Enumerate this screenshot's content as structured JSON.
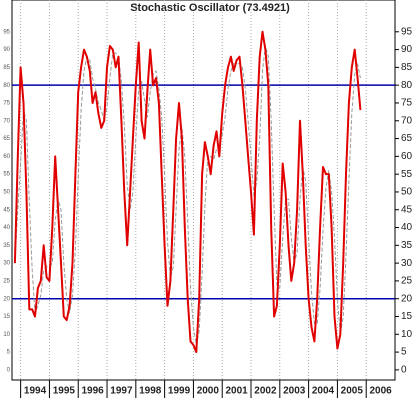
{
  "chart_data": {
    "type": "line",
    "title": "Stochastic Oscillator (73.4921)",
    "x": [
      1993.8,
      1993.9,
      1994,
      1994.1,
      1994.2,
      1994.3,
      1994.4,
      1994.5,
      1994.6,
      1994.7,
      1994.8,
      1994.9,
      1995,
      1995.1,
      1995.2,
      1995.3,
      1995.4,
      1995.5,
      1995.6,
      1995.7,
      1995.8,
      1995.9,
      1996,
      1996.1,
      1996.2,
      1996.3,
      1996.4,
      1996.5,
      1996.6,
      1996.7,
      1996.8,
      1996.9,
      1997,
      1997.1,
      1997.2,
      1997.3,
      1997.4,
      1997.5,
      1997.6,
      1997.7,
      1997.8,
      1997.9,
      1998,
      1998.1,
      1998.2,
      1998.3,
      1998.4,
      1998.5,
      1998.6,
      1998.7,
      1998.8,
      1998.9,
      1999,
      1999.1,
      1999.2,
      1999.3,
      1999.4,
      1999.5,
      1999.6,
      1999.7,
      1999.8,
      1999.9,
      2000,
      2000.1,
      2000.2,
      2000.3,
      2000.4,
      2000.5,
      2000.6,
      2000.7,
      2000.8,
      2000.9,
      2001,
      2001.1,
      2001.2,
      2001.3,
      2001.4,
      2001.5,
      2001.6,
      2001.7,
      2001.8,
      2001.9,
      2002,
      2002.1,
      2002.2,
      2002.3,
      2002.4,
      2002.5,
      2002.6,
      2002.7,
      2002.8,
      2002.9,
      2003,
      2003.1,
      2003.2,
      2003.3,
      2003.4,
      2003.5,
      2003.6,
      2003.7,
      2003.8,
      2003.9,
      2004,
      2004.1,
      2004.2,
      2004.3,
      2004.4,
      2004.5,
      2004.6,
      2004.7,
      2004.8,
      2004.9,
      2005,
      2005.1,
      2005.2,
      2005.3,
      2005.4,
      2005.5,
      2005.6,
      2005.7,
      2005.8
    ],
    "series": [
      {
        "color": "#999999",
        "dashed": true,
        "values": [
          30,
          45,
          58,
          73,
          70,
          47,
          28,
          16,
          18,
          21,
          28,
          29,
          29,
          30,
          42,
          48,
          45,
          30,
          20,
          16,
          21,
          34,
          54,
          73,
          84,
          88,
          87,
          82,
          79,
          75,
          73,
          70,
          74,
          82,
          89,
          89,
          88,
          81,
          69,
          52,
          45,
          50,
          65,
          79,
          81,
          76,
          71,
          78,
          83,
          84,
          79,
          71,
          55,
          36,
          26,
          29,
          45,
          62,
          68,
          60,
          42,
          23,
          12,
          7,
          11,
          27,
          46,
          60,
          60,
          59,
          62,
          63,
          66,
          71,
          79,
          84,
          86,
          86,
          86,
          85,
          79,
          70,
          60,
          49,
          53,
          65,
          84,
          91,
          88,
          70,
          45,
          24,
          23,
          37,
          48,
          48,
          37,
          30,
          33,
          48,
          57,
          53,
          37,
          22,
          13,
          13,
          23,
          39,
          51,
          56,
          50,
          37,
          20,
          10,
          15,
          32,
          53,
          72,
          83,
          86,
          82
        ]
      },
      {
        "color": "#e00000",
        "dashed": false,
        "values": [
          30,
          60,
          85,
          75,
          50,
          17,
          17,
          15,
          23,
          25,
          35,
          26,
          25,
          40,
          60,
          45,
          30,
          15,
          14,
          18,
          30,
          55,
          78,
          85,
          90,
          88,
          84,
          75,
          78,
          72,
          68,
          70,
          85,
          91,
          90,
          85,
          88,
          70,
          50,
          35,
          50,
          65,
          80,
          92,
          70,
          65,
          78,
          90,
          80,
          82,
          75,
          55,
          35,
          18,
          25,
          45,
          65,
          75,
          65,
          40,
          20,
          8,
          7,
          5,
          20,
          55,
          64,
          60,
          55,
          63,
          67,
          60,
          72,
          80,
          85,
          88,
          84,
          87,
          88,
          80,
          70,
          60,
          50,
          38,
          70,
          88,
          95,
          90,
          80,
          40,
          15,
          18,
          35,
          58,
          50,
          35,
          25,
          30,
          45,
          70,
          55,
          35,
          20,
          12,
          8,
          20,
          40,
          57,
          55,
          55,
          40,
          15,
          6,
          10,
          30,
          55,
          75,
          85,
          90,
          82,
          73
        ]
      }
    ],
    "hlines": [
      80,
      20
    ],
    "hline_color": "#0000aa",
    "xlim": [
      1993.7,
      2007.0
    ],
    "xticks": [
      1994,
      1995,
      1996,
      1997,
      1998,
      1999,
      2000,
      2001,
      2002,
      2003,
      2004,
      2005,
      2006
    ],
    "ylim": [
      -2,
      100
    ],
    "yticks": [
      0,
      5,
      10,
      15,
      20,
      25,
      30,
      35,
      40,
      45,
      50,
      55,
      60,
      65,
      70,
      75,
      80,
      85,
      90,
      95
    ],
    "grid_x": true
  }
}
